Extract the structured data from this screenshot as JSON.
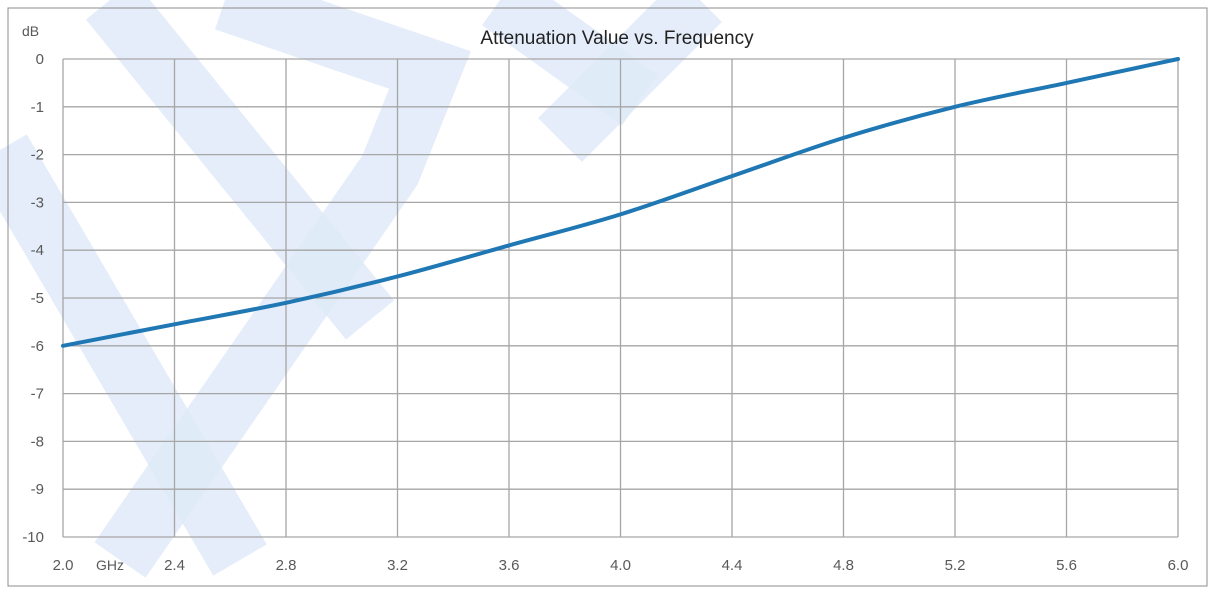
{
  "chart_data": {
    "type": "line",
    "title": "Attenuation Value vs. Frequency",
    "y_unit": "dB",
    "x_unit": "GHz",
    "xlim": [
      2.0,
      6.0
    ],
    "ylim": [
      -10,
      0
    ],
    "x_ticks": [
      "2.0",
      "2.4",
      "2.8",
      "3.2",
      "3.6",
      "4.0",
      "4.4",
      "4.8",
      "5.2",
      "5.6",
      "6.0"
    ],
    "y_ticks": [
      "0",
      "-1",
      "-2",
      "-3",
      "-4",
      "-5",
      "-6",
      "-7",
      "-8",
      "-9",
      "-10"
    ],
    "grid": true,
    "legend": "none",
    "series": [
      {
        "color": "#1f77b4",
        "x": [
          2.0,
          2.4,
          2.8,
          3.2,
          3.6,
          4.0,
          4.4,
          4.8,
          5.2,
          5.6,
          6.0
        ],
        "y": [
          -6.0,
          -5.55,
          -5.1,
          -4.55,
          -3.9,
          -3.25,
          -2.45,
          -1.65,
          -1.0,
          -0.5,
          0.0
        ]
      }
    ]
  },
  "colors": {
    "grid": "#a6a6a6",
    "frame": "#8c8c8c",
    "line": "#1f77b4",
    "watermark": "#dfeaf8"
  }
}
